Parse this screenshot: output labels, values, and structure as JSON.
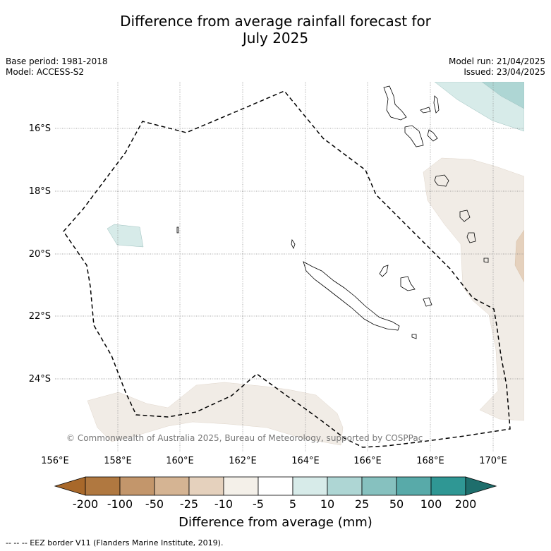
{
  "title_line1": "Difference from average rainfall forecast for",
  "title_line2": "July 2025",
  "meta_left": {
    "base_period": "Base period: 1981-2018",
    "model": "Model: ACCESS-S2"
  },
  "meta_right": {
    "model_run": "Model run: 21/04/2025",
    "issued": "Issued: 23/04/2025"
  },
  "lat_labels": [
    "16°S",
    "18°S",
    "20°S",
    "22°S",
    "24°S"
  ],
  "lon_labels": [
    "156°E",
    "158°E",
    "160°E",
    "162°E",
    "164°E",
    "166°E",
    "168°E",
    "170°E"
  ],
  "copyright": "© Commonwealth of Australia 2025, Bureau of Meteorology, supported by COSPPac",
  "colorbar": {
    "title": "Difference from average (mm)",
    "tick_labels": [
      "-200",
      "-100",
      "-50",
      "-25",
      "-10",
      "-5",
      "5",
      "10",
      "25",
      "50",
      "100",
      "200"
    ],
    "colors": [
      "#a8682a",
      "#b07840",
      "#c3966b",
      "#d5b493",
      "#e5d1bd",
      "#f4f0e9",
      "#ffffff",
      "#d7ebe9",
      "#aed6d4",
      "#86c1bf",
      "#58aaa9",
      "#2f9794",
      "#1e6e6c"
    ]
  },
  "footer": "--  --  -- EEZ border V11 (Flanders Marine Institute, 2019)."
}
